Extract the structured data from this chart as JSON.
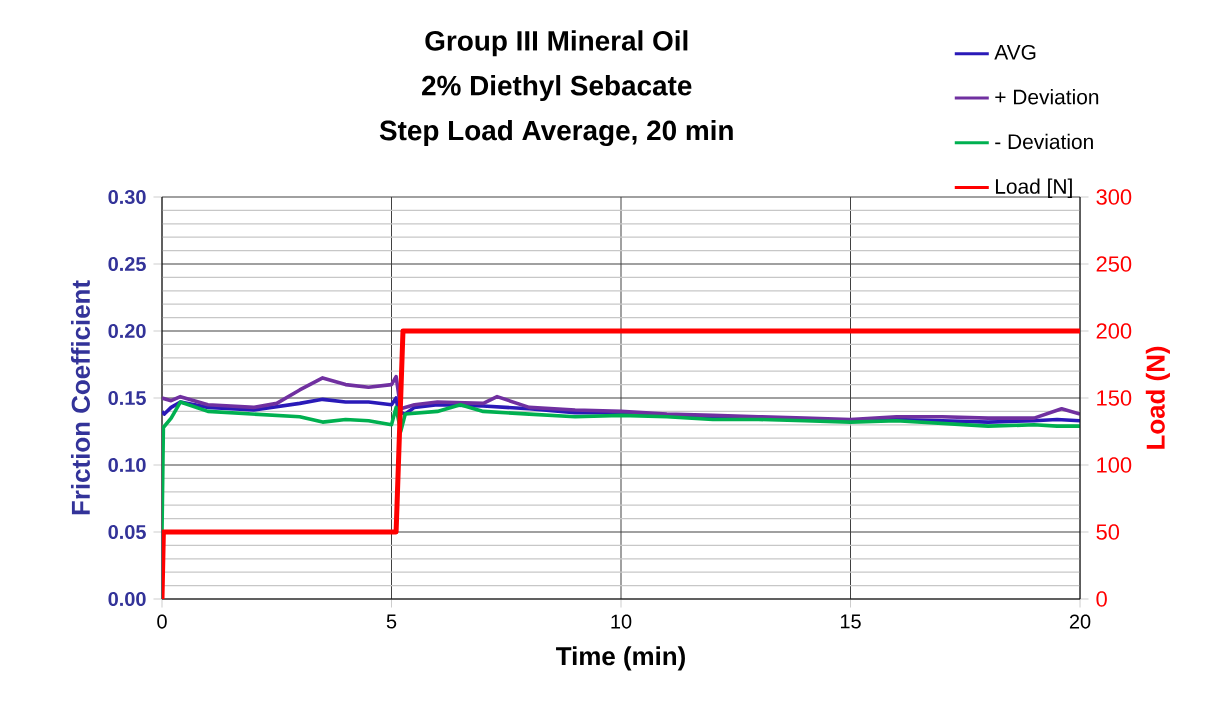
{
  "chart_data": {
    "type": "line",
    "title": "Group III Mineral Oil\n2% Diethyl Sebacate\nStep Load Average, 20 min",
    "xlabel": "Time (min)",
    "ylabel": "Friction Coefficient",
    "y2label": "Load (N)",
    "xlim": [
      0,
      20
    ],
    "xticks": [
      0,
      5,
      10,
      15,
      20
    ],
    "ylim": [
      0,
      0.3
    ],
    "yticks": [
      {
        "value": 0,
        "label": "0.00"
      },
      {
        "value": 0.05,
        "label": "0.05"
      },
      {
        "value": 0.1,
        "label": "0.10"
      },
      {
        "value": 0.15,
        "label": "0.15"
      },
      {
        "value": 0.2,
        "label": "0.20"
      },
      {
        "value": 0.25,
        "label": "0.25"
      },
      {
        "value": 0.3,
        "label": "0.30"
      }
    ],
    "y2lim": [
      0,
      300
    ],
    "y2ticks": [
      0,
      50,
      100,
      150,
      200,
      250,
      300
    ],
    "grid": true,
    "legend": "top right",
    "series": [
      {
        "name": "AVG",
        "color": "#2a1ab8",
        "x": [
          0,
          0.05,
          0.2,
          0.4,
          1,
          2,
          3,
          3.5,
          4,
          4.5,
          5,
          5.1,
          5.15,
          5.3,
          5.5,
          6,
          7,
          8,
          9,
          10,
          11,
          12,
          13,
          14,
          15,
          16,
          17,
          18,
          19,
          19.5,
          20
        ],
        "values": [
          0.14,
          0.138,
          0.143,
          0.147,
          0.143,
          0.141,
          0.146,
          0.149,
          0.147,
          0.147,
          0.145,
          0.15,
          0.14,
          0.138,
          0.143,
          0.145,
          0.144,
          0.142,
          0.139,
          0.139,
          0.137,
          0.136,
          0.135,
          0.134,
          0.133,
          0.134,
          0.133,
          0.132,
          0.133,
          0.134,
          0.133
        ]
      },
      {
        "name": "+ Deviation",
        "color": "#7030a0",
        "x": [
          0,
          0.2,
          0.4,
          1,
          2,
          2.5,
          3,
          3.5,
          4,
          4.5,
          5,
          5.1,
          5.2,
          5.5,
          6,
          7,
          7.3,
          8,
          9,
          10,
          11,
          12,
          13,
          14,
          15,
          16,
          17,
          18,
          19,
          19.6,
          20
        ],
        "values": [
          0.15,
          0.148,
          0.151,
          0.145,
          0.143,
          0.146,
          0.156,
          0.165,
          0.16,
          0.158,
          0.16,
          0.166,
          0.142,
          0.145,
          0.147,
          0.146,
          0.151,
          0.143,
          0.141,
          0.14,
          0.138,
          0.137,
          0.136,
          0.135,
          0.134,
          0.136,
          0.136,
          0.135,
          0.135,
          0.142,
          0.138
        ]
      },
      {
        "name": "- Deviation",
        "color": "#00b050",
        "x": [
          0,
          0.03,
          0.2,
          0.4,
          1,
          2,
          3,
          3.5,
          4,
          4.5,
          5,
          5.1,
          5.2,
          5.3,
          6,
          6.5,
          7,
          8,
          9,
          10,
          11,
          12,
          13,
          14,
          15,
          16,
          17,
          18,
          19,
          19.5,
          20
        ],
        "values": [
          0.05,
          0.128,
          0.135,
          0.147,
          0.14,
          0.138,
          0.136,
          0.132,
          0.134,
          0.133,
          0.13,
          0.143,
          0.125,
          0.138,
          0.14,
          0.145,
          0.14,
          0.138,
          0.136,
          0.137,
          0.136,
          0.134,
          0.134,
          0.133,
          0.132,
          0.133,
          0.131,
          0.129,
          0.13,
          0.129,
          0.129
        ]
      },
      {
        "name": "Load [N]",
        "color": "#ff0000",
        "axis": "y2",
        "x": [
          0,
          0.03,
          5.1,
          5.25,
          20
        ],
        "values": [
          0,
          50,
          50,
          200,
          200
        ]
      }
    ]
  }
}
